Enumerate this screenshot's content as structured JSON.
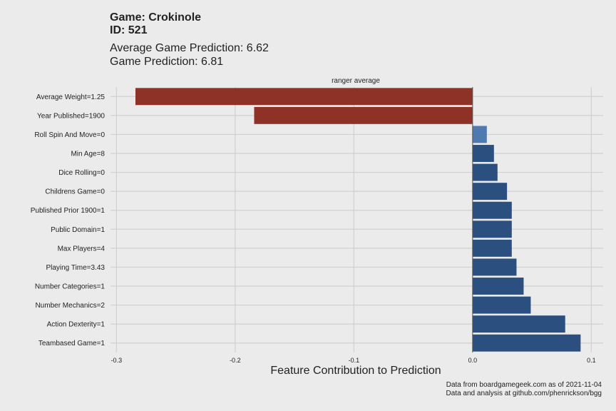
{
  "header": {
    "game_line": "Game: Crokinole",
    "id_line": "ID: 521",
    "avg_prediction": "Average Game Prediction: 6.62",
    "prediction": "Game Prediction: 6.81"
  },
  "caption": {
    "line1": "Data from boardgamegeek.com as of 2021-11-04",
    "line2": "Data and analysis at github.com/phenrickson/bgg"
  },
  "colors": {
    "negative": "#8e3228",
    "positive": "#2b4f7e",
    "positive_light": "#4f7aaf",
    "grid": "#d0d0d0",
    "background": "#ebebeb"
  },
  "chart_data": {
    "type": "bar",
    "orientation": "horizontal",
    "facet_label": "ranger average",
    "xlabel": "Feature Contribution to Prediction",
    "xlim": [
      -0.3,
      0.1
    ],
    "x_ticks": [
      -0.3,
      -0.2,
      -0.1,
      0.0,
      0.1
    ],
    "x_tick_labels": [
      "-0.3",
      "-0.2",
      "-0.1",
      "0.0",
      "0.1"
    ],
    "grid": true,
    "categories": [
      "Average Weight=1.25",
      "Year Published=1900",
      "Roll Spin And Move=0",
      "Min Age=8",
      "Dice Rolling=0",
      "Childrens Game=0",
      "Published Prior 1900=1",
      "Public Domain=1",
      "Max Players=4",
      "Playing Time=3.43",
      "Number Categories=1",
      "Number Mechanics=2",
      "Action Dexterity=1",
      "Teambased Game=1"
    ],
    "values": [
      -0.284,
      -0.184,
      0.012,
      0.018,
      0.021,
      0.029,
      0.033,
      0.033,
      0.033,
      0.037,
      0.043,
      0.049,
      0.078,
      0.091
    ]
  }
}
